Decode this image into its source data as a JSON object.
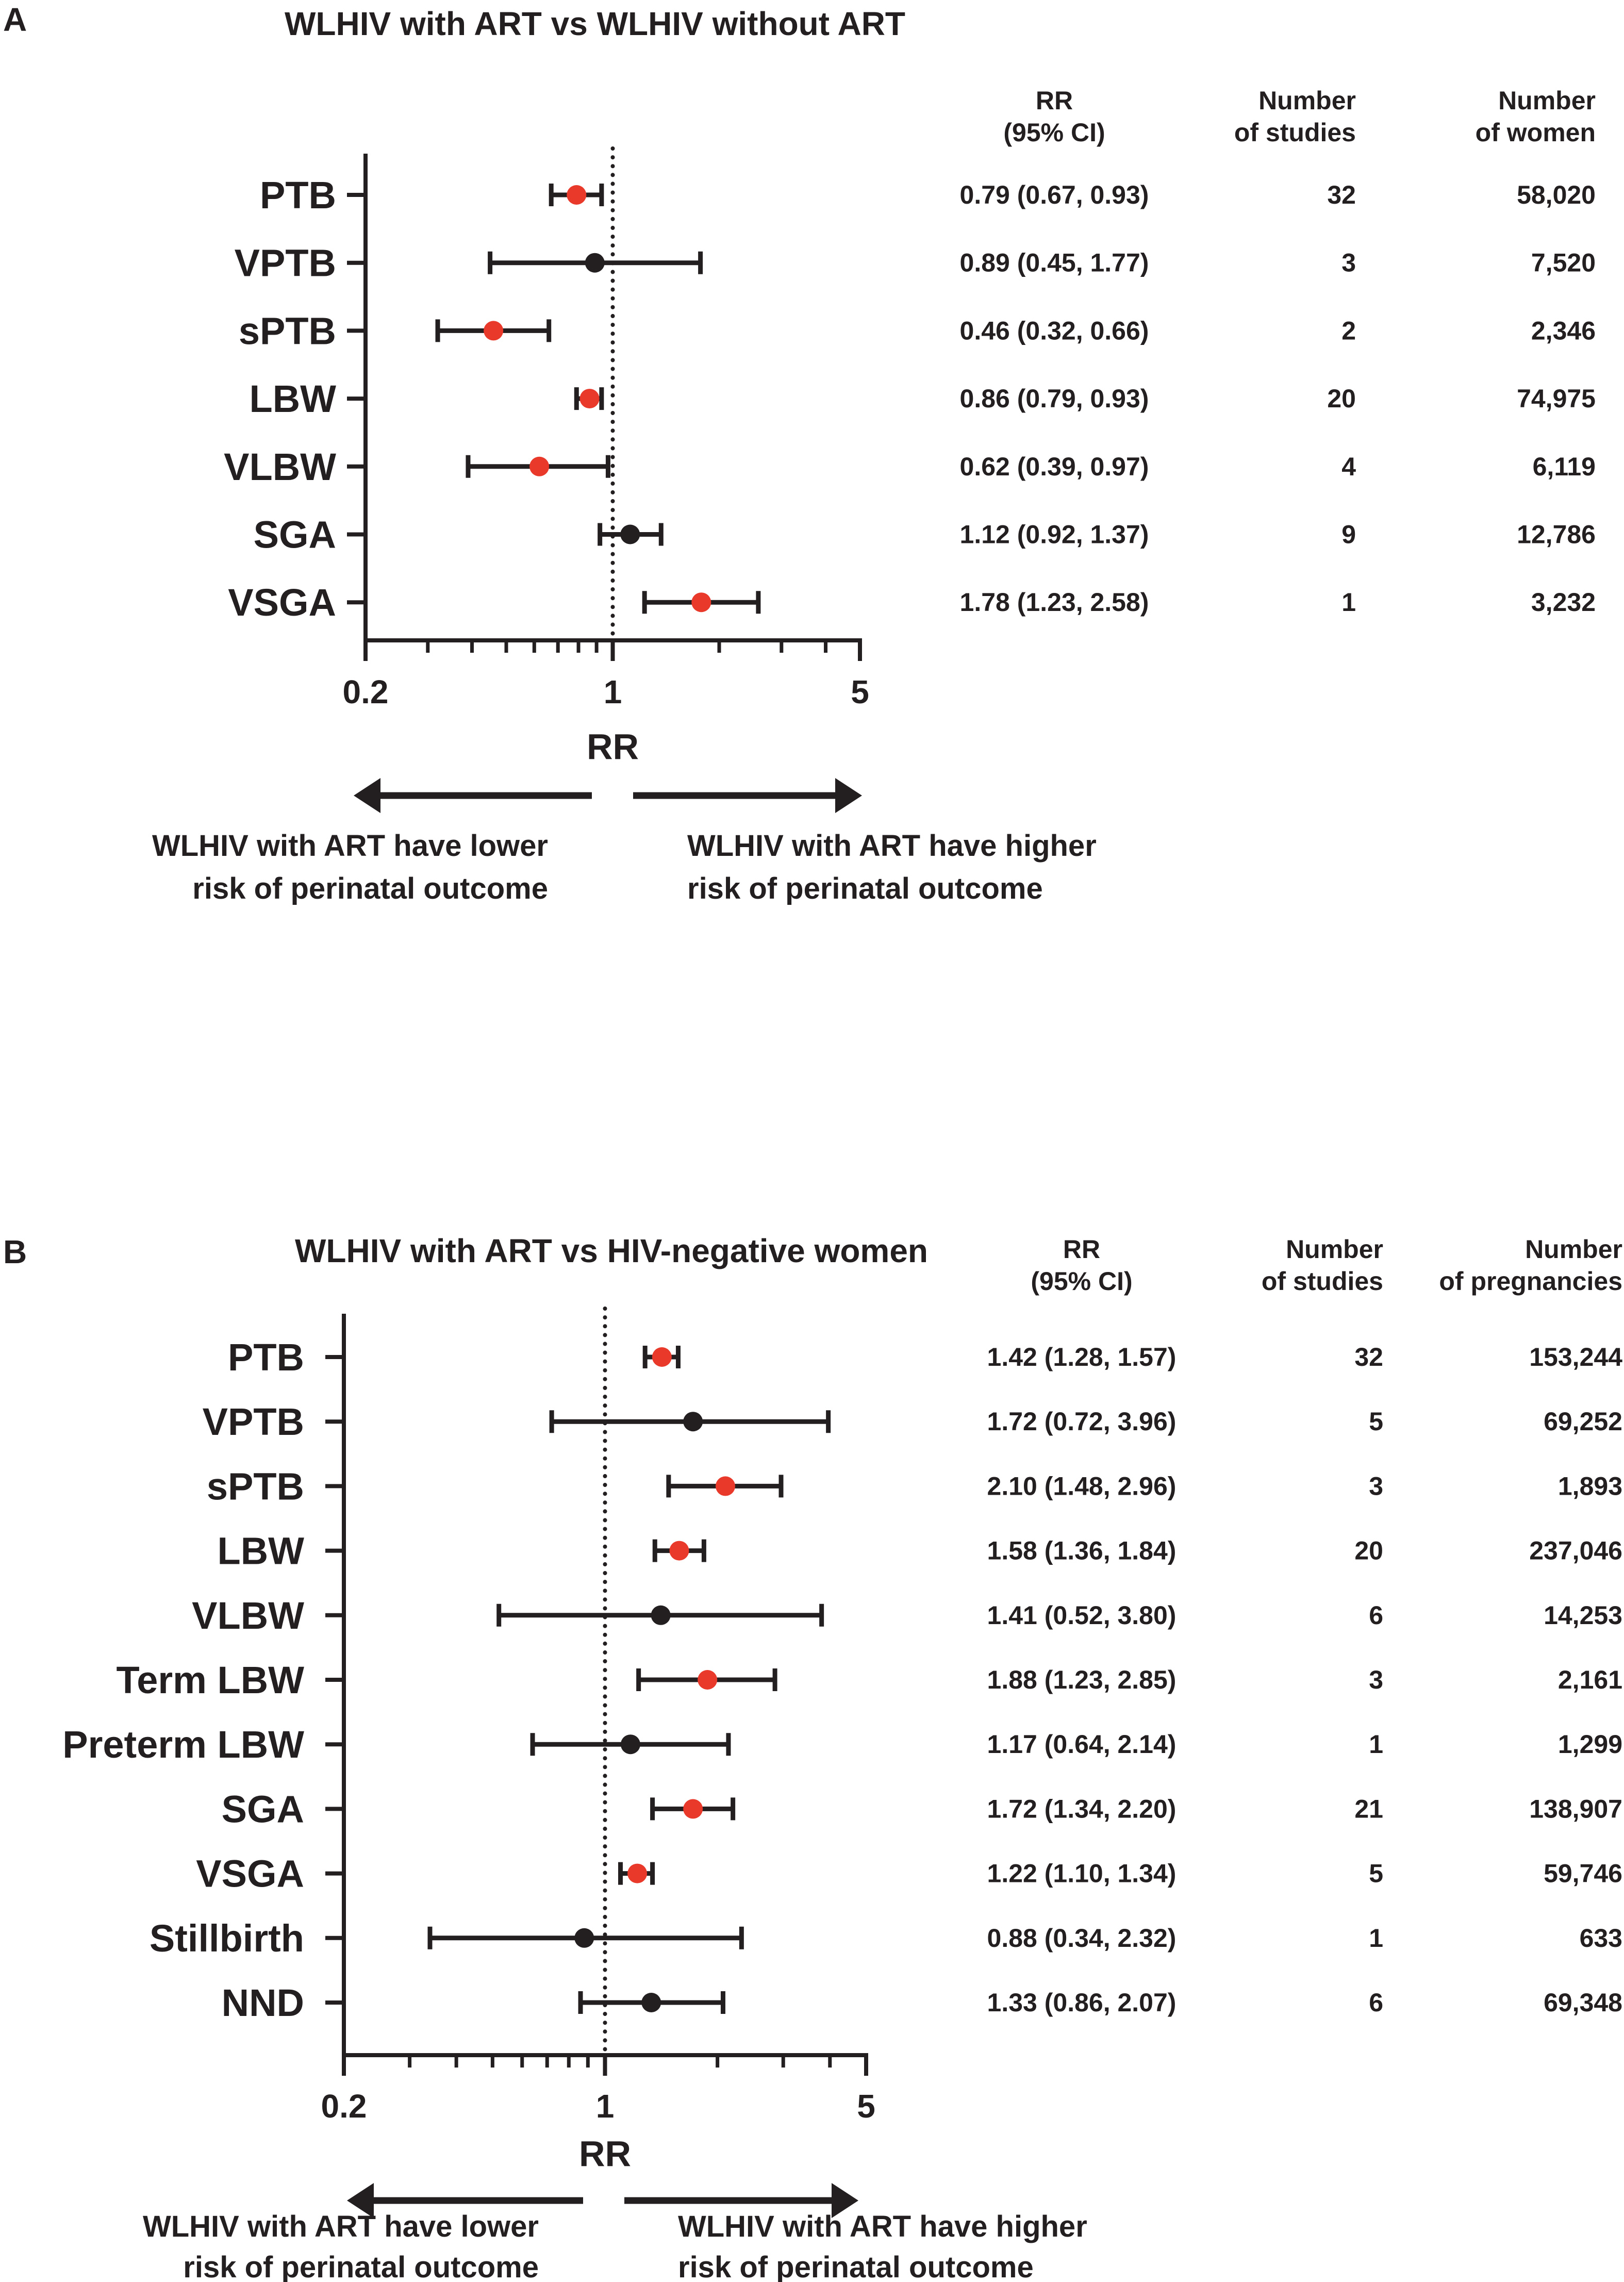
{
  "chart_data": [
    {
      "type": "forest",
      "panel": "A",
      "title": "WLHIV with ART vs WLHIV without ART",
      "xlabel": "RR",
      "xscale": "log",
      "xlim": [
        0.2,
        5
      ],
      "xticks": [
        "0.2",
        "1",
        "5"
      ],
      "reference_line": 1,
      "columns": [
        [
          "RR",
          "(95% CI)"
        ],
        [
          "Number",
          "of studies"
        ],
        [
          "Number",
          "of women"
        ]
      ],
      "rows": [
        {
          "label": "PTB",
          "rr": 0.79,
          "lo": 0.67,
          "hi": 0.93,
          "significant": true,
          "rr_text": "0.79 (0.67, 0.93)",
          "studies": "32",
          "count": "58,020"
        },
        {
          "label": "VPTB",
          "rr": 0.89,
          "lo": 0.45,
          "hi": 1.77,
          "significant": false,
          "rr_text": "0.89 (0.45, 1.77)",
          "studies": "3",
          "count": "7,520"
        },
        {
          "label": "sPTB",
          "rr": 0.46,
          "lo": 0.32,
          "hi": 0.66,
          "significant": true,
          "rr_text": "0.46 (0.32, 0.66)",
          "studies": "2",
          "count": "2,346"
        },
        {
          "label": "LBW",
          "rr": 0.86,
          "lo": 0.79,
          "hi": 0.93,
          "significant": true,
          "rr_text": "0.86 (0.79, 0.93)",
          "studies": "20",
          "count": "74,975"
        },
        {
          "label": "VLBW",
          "rr": 0.62,
          "lo": 0.39,
          "hi": 0.97,
          "significant": true,
          "rr_text": "0.62 (0.39, 0.97)",
          "studies": "4",
          "count": "6,119"
        },
        {
          "label": "SGA",
          "rr": 1.12,
          "lo": 0.92,
          "hi": 1.37,
          "significant": false,
          "rr_text": "1.12 (0.92, 1.37)",
          "studies": "9",
          "count": "12,786"
        },
        {
          "label": "VSGA",
          "rr": 1.78,
          "lo": 1.23,
          "hi": 2.58,
          "significant": true,
          "rr_text": "1.78 (1.23, 2.58)",
          "studies": "1",
          "count": "3,232"
        }
      ],
      "left_note": [
        "WLHIV with ART have lower",
        "risk of perinatal outcome"
      ],
      "right_note": [
        "WLHIV with ART have higher",
        "risk of perinatal outcome"
      ]
    },
    {
      "type": "forest",
      "panel": "B",
      "title": "WLHIV with ART vs HIV-negative women",
      "xlabel": "RR",
      "xscale": "log",
      "xlim": [
        0.2,
        5
      ],
      "xticks": [
        "0.2",
        "1",
        "5"
      ],
      "reference_line": 1,
      "columns": [
        [
          "RR",
          "(95% CI)"
        ],
        [
          "Number",
          "of studies"
        ],
        [
          "Number",
          "of pregnancies"
        ]
      ],
      "rows": [
        {
          "label": "PTB",
          "rr": 1.42,
          "lo": 1.28,
          "hi": 1.57,
          "significant": true,
          "rr_text": "1.42 (1.28, 1.57)",
          "studies": "32",
          "count": "153,244"
        },
        {
          "label": "VPTB",
          "rr": 1.72,
          "lo": 0.72,
          "hi": 3.96,
          "significant": false,
          "rr_text": "1.72 (0.72, 3.96)",
          "studies": "5",
          "count": "69,252"
        },
        {
          "label": "sPTB",
          "rr": 2.1,
          "lo": 1.48,
          "hi": 2.96,
          "significant": true,
          "rr_text": "2.10 (1.48, 2.96)",
          "studies": "3",
          "count": "1,893"
        },
        {
          "label": "LBW",
          "rr": 1.58,
          "lo": 1.36,
          "hi": 1.84,
          "significant": true,
          "rr_text": "1.58 (1.36, 1.84)",
          "studies": "20",
          "count": "237,046"
        },
        {
          "label": "VLBW",
          "rr": 1.41,
          "lo": 0.52,
          "hi": 3.8,
          "significant": false,
          "rr_text": "1.41 (0.52, 3.80)",
          "studies": "6",
          "count": "14,253"
        },
        {
          "label": "Term LBW",
          "rr": 1.88,
          "lo": 1.23,
          "hi": 2.85,
          "significant": true,
          "rr_text": "1.88 (1.23, 2.85)",
          "studies": "3",
          "count": "2,161"
        },
        {
          "label": "Preterm LBW",
          "rr": 1.17,
          "lo": 0.64,
          "hi": 2.14,
          "significant": false,
          "rr_text": "1.17 (0.64, 2.14)",
          "studies": "1",
          "count": "1,299"
        },
        {
          "label": "SGA",
          "rr": 1.72,
          "lo": 1.34,
          "hi": 2.2,
          "significant": true,
          "rr_text": "1.72 (1.34, 2.20)",
          "studies": "21",
          "count": "138,907"
        },
        {
          "label": "VSGA",
          "rr": 1.22,
          "lo": 1.1,
          "hi": 1.34,
          "significant": true,
          "rr_text": "1.22 (1.10, 1.34)",
          "studies": "5",
          "count": "59,746"
        },
        {
          "label": "Stillbirth",
          "rr": 0.88,
          "lo": 0.34,
          "hi": 2.32,
          "significant": false,
          "rr_text": "0.88 (0.34, 2.32)",
          "studies": "1",
          "count": "633"
        },
        {
          "label": "NND",
          "rr": 1.33,
          "lo": 0.86,
          "hi": 2.07,
          "significant": false,
          "rr_text": "1.33 (0.86, 2.07)",
          "studies": "6",
          "count": "69,348"
        }
      ],
      "left_note": [
        "WLHIV with ART have lower",
        "risk of perinatal outcome"
      ],
      "right_note": [
        "WLHIV with ART have higher",
        "risk of perinatal outcome"
      ]
    }
  ],
  "colors": {
    "significant": "#e8392b",
    "nonsignificant": "#231f20",
    "ink": "#231f20"
  }
}
